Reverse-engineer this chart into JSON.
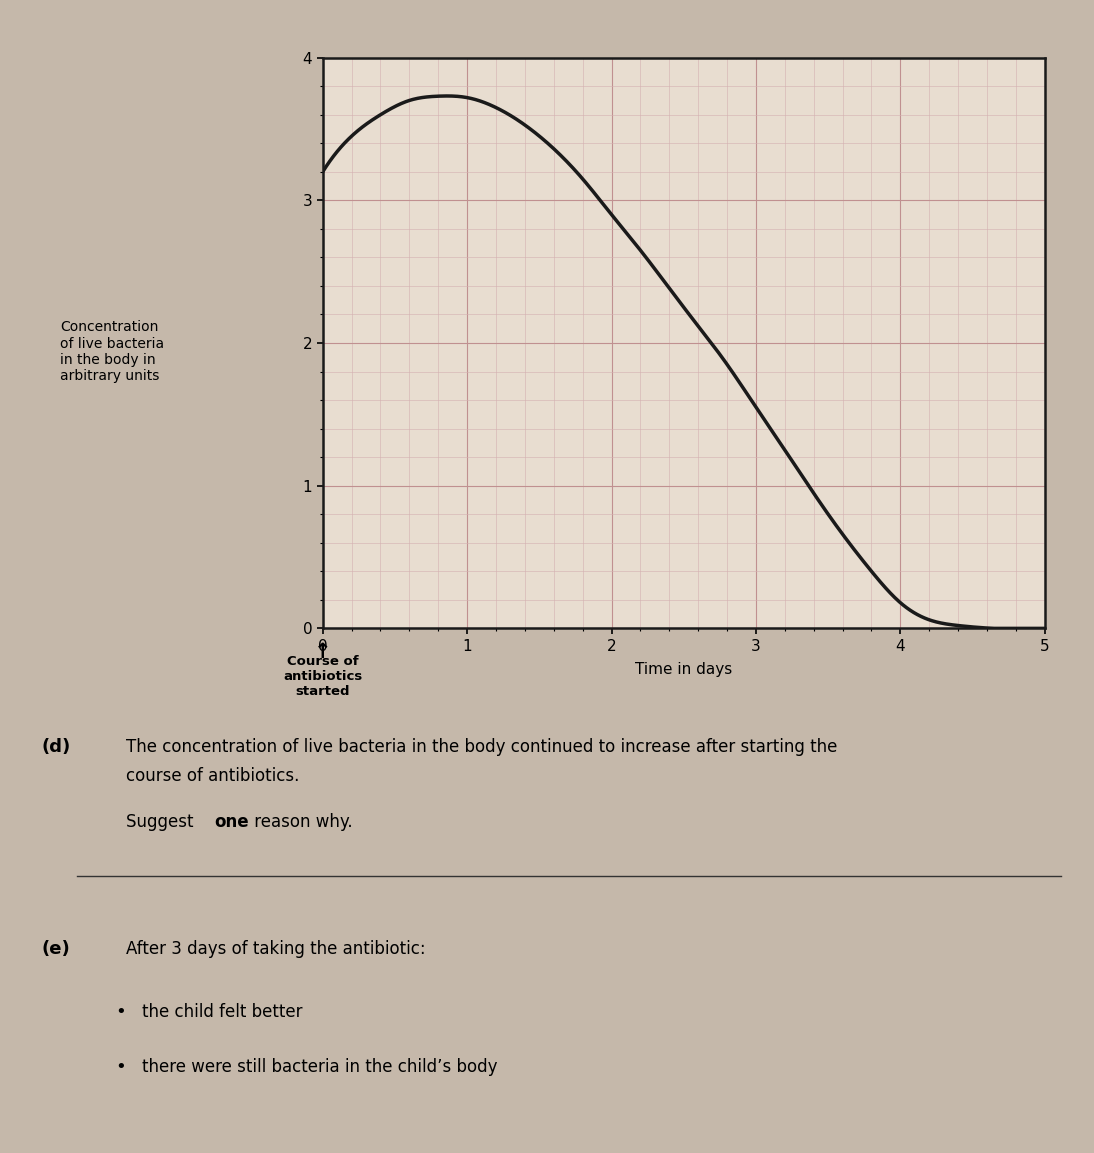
{
  "ylabel_text": "Concentration\nof live bacteria\nin the body in\narbitrary units",
  "xlabel_text": "Time in days",
  "xlim": [
    0,
    5
  ],
  "ylim": [
    0,
    4
  ],
  "xticks": [
    0,
    1,
    2,
    3,
    4,
    5
  ],
  "yticks": [
    0,
    1,
    2,
    3,
    4
  ],
  "curve_color": "#1a1a1a",
  "curve_linewidth": 2.5,
  "major_grid_color": "#c09090",
  "minor_grid_color": "#d4b0b0",
  "major_grid_lw": 0.8,
  "minor_grid_lw": 0.4,
  "plot_bg_color": "#e8ddd0",
  "fig_bg_color": "#c5b8aa",
  "annotation_text": "Course of\nantibiotics\nstarted",
  "section_d_text1": "The concentration of live bacteria in the body continued to increase after starting the",
  "section_d_text2": "course of antibiotics.",
  "suggest_normal": "Suggest ",
  "suggest_bold": "one",
  "suggest_end": " reason why.",
  "section_e_text": "After 3 days of taking the antibiotic:",
  "bullet_1": "the child felt better",
  "bullet_2": "there were still bacteria in the child’s body",
  "curve_x": [
    0.0,
    0.2,
    0.4,
    0.6,
    0.8,
    1.0,
    1.2,
    1.5,
    1.8,
    2.0,
    2.2,
    2.5,
    2.8,
    3.0,
    3.2,
    3.5,
    3.8,
    4.0,
    4.2,
    4.4,
    4.5,
    5.0
  ],
  "curve_y": [
    3.2,
    3.45,
    3.6,
    3.7,
    3.73,
    3.72,
    3.65,
    3.45,
    3.15,
    2.9,
    2.65,
    2.25,
    1.85,
    1.55,
    1.25,
    0.8,
    0.4,
    0.18,
    0.06,
    0.02,
    0.01,
    0.0
  ]
}
